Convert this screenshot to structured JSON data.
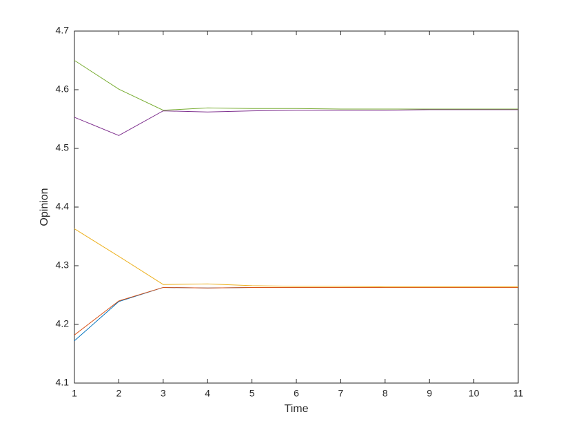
{
  "chart_data": {
    "type": "line",
    "xlabel": "Time",
    "ylabel": "Opinion",
    "x": [
      1,
      2,
      3,
      4,
      5,
      6,
      7,
      8,
      9,
      10,
      11
    ],
    "series": [
      {
        "color": "#0072BD",
        "values": [
          4.172,
          4.239,
          4.263,
          4.262,
          4.263,
          4.263,
          4.263,
          4.263,
          4.263,
          4.263,
          4.263
        ]
      },
      {
        "color": "#D95319",
        "values": [
          4.182,
          4.24,
          4.263,
          4.262,
          4.263,
          4.263,
          4.263,
          4.263,
          4.263,
          4.263,
          4.263
        ]
      },
      {
        "color": "#EDB120",
        "values": [
          4.363,
          4.316,
          4.268,
          4.269,
          4.266,
          4.265,
          4.265,
          4.264,
          4.264,
          4.264,
          4.264
        ]
      },
      {
        "color": "#7E2F8E",
        "values": [
          4.553,
          4.522,
          4.564,
          4.562,
          4.564,
          4.565,
          4.565,
          4.565,
          4.566,
          4.566,
          4.566
        ]
      },
      {
        "color": "#77AC30",
        "values": [
          4.65,
          4.601,
          4.565,
          4.569,
          4.568,
          4.568,
          4.567,
          4.567,
          4.567,
          4.567,
          4.567
        ]
      }
    ],
    "xlim": [
      1,
      11
    ],
    "xticks": [
      1,
      2,
      3,
      4,
      5,
      6,
      7,
      8,
      9,
      10,
      11
    ],
    "ylim": [
      4.1,
      4.7
    ],
    "yticks": [
      4.1,
      4.2,
      4.3,
      4.4,
      4.5,
      4.6,
      4.7
    ],
    "grid": false
  }
}
